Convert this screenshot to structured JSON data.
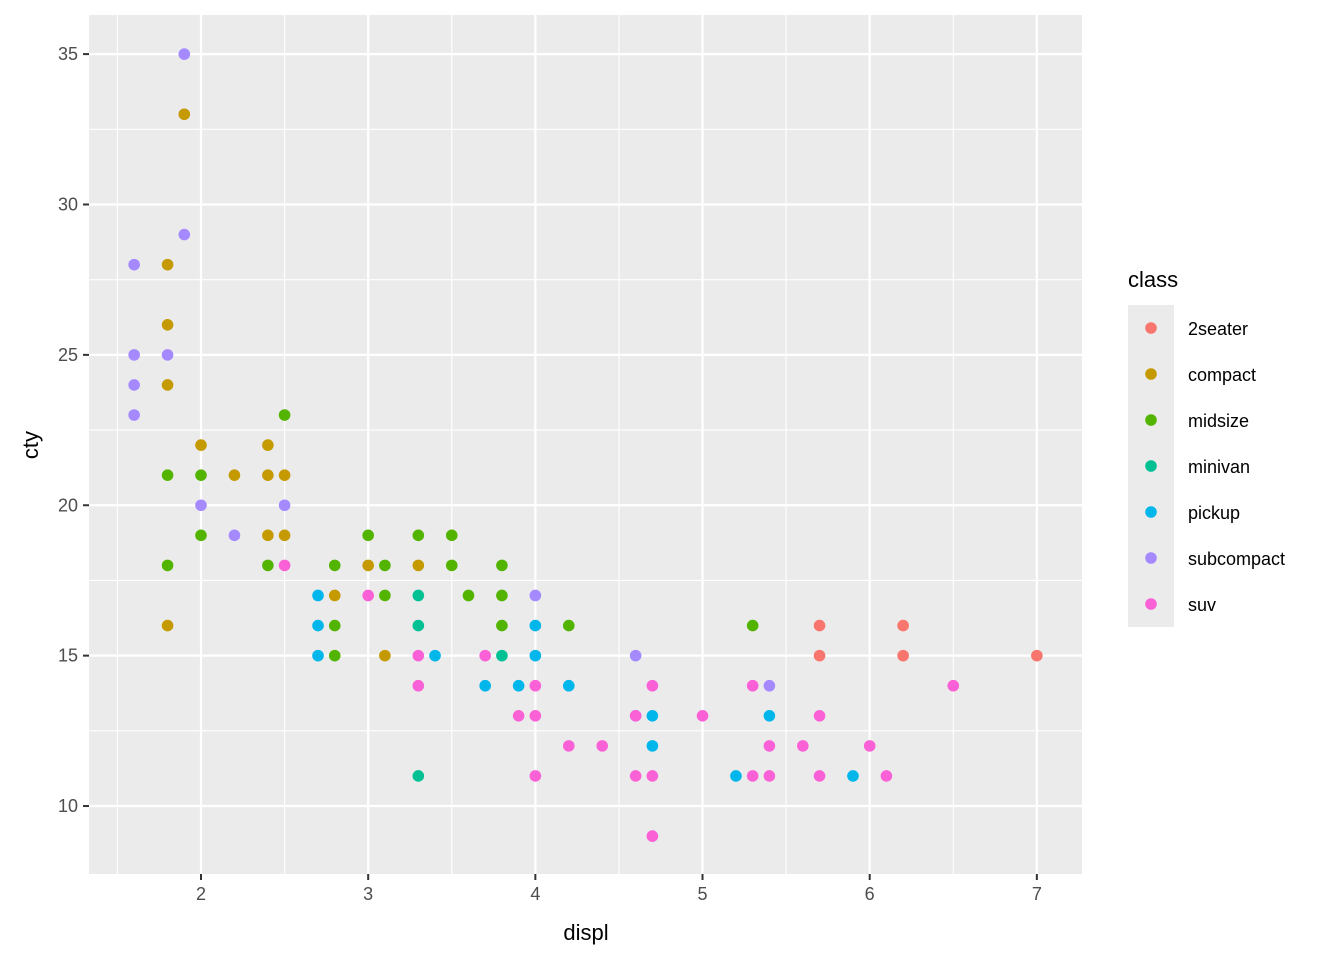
{
  "chart_data": {
    "type": "scatter",
    "xlabel": "displ",
    "ylabel": "cty",
    "xlim": [
      1.33,
      7.27
    ],
    "ylim": [
      7.74,
      36.3
    ],
    "xticks": [
      2,
      3,
      4,
      5,
      6,
      7
    ],
    "yticks": [
      10,
      15,
      20,
      25,
      30,
      35
    ],
    "grid": true,
    "legend": {
      "title": "class",
      "placement": "right"
    },
    "series": [
      {
        "name": "2seater",
        "color": "#F8766D",
        "points": [
          [
            5.7,
            16
          ],
          [
            5.7,
            15
          ],
          [
            6.2,
            16
          ],
          [
            6.2,
            15
          ],
          [
            7.0,
            15
          ]
        ]
      },
      {
        "name": "compact",
        "color": "#C49A00",
        "points": [
          [
            1.9,
            33
          ],
          [
            1.8,
            28
          ],
          [
            1.8,
            26
          ],
          [
            1.8,
            24
          ],
          [
            1.8,
            16
          ],
          [
            2.0,
            22
          ],
          [
            2.2,
            21
          ],
          [
            2.4,
            22
          ],
          [
            2.4,
            21
          ],
          [
            2.4,
            19
          ],
          [
            2.5,
            21
          ],
          [
            2.5,
            19
          ],
          [
            2.8,
            17
          ],
          [
            3.0,
            18
          ],
          [
            3.1,
            15
          ],
          [
            3.3,
            18
          ]
        ]
      },
      {
        "name": "midsize",
        "color": "#53B400",
        "points": [
          [
            1.8,
            21
          ],
          [
            1.8,
            18
          ],
          [
            2.0,
            21
          ],
          [
            2.0,
            19
          ],
          [
            2.4,
            18
          ],
          [
            2.5,
            23
          ],
          [
            2.8,
            18
          ],
          [
            2.8,
            16
          ],
          [
            2.8,
            15
          ],
          [
            3.0,
            19
          ],
          [
            3.1,
            18
          ],
          [
            3.1,
            17
          ],
          [
            3.3,
            19
          ],
          [
            3.5,
            19
          ],
          [
            3.5,
            18
          ],
          [
            3.6,
            17
          ],
          [
            3.8,
            18
          ],
          [
            3.8,
            17
          ],
          [
            3.8,
            16
          ],
          [
            4.2,
            16
          ],
          [
            5.3,
            16
          ]
        ]
      },
      {
        "name": "minivan",
        "color": "#00C094",
        "points": [
          [
            3.3,
            17
          ],
          [
            3.3,
            16
          ],
          [
            3.3,
            11
          ],
          [
            3.8,
            15
          ]
        ]
      },
      {
        "name": "pickup",
        "color": "#00B6EB",
        "points": [
          [
            2.7,
            17
          ],
          [
            2.7,
            16
          ],
          [
            2.7,
            15
          ],
          [
            3.4,
            15
          ],
          [
            3.7,
            14
          ],
          [
            3.9,
            14
          ],
          [
            4.0,
            16
          ],
          [
            4.0,
            15
          ],
          [
            4.2,
            14
          ],
          [
            4.7,
            13
          ],
          [
            4.7,
            12
          ],
          [
            5.2,
            11
          ],
          [
            5.4,
            13
          ],
          [
            5.9,
            11
          ]
        ]
      },
      {
        "name": "subcompact",
        "color": "#A58AFF",
        "points": [
          [
            1.9,
            35
          ],
          [
            1.9,
            29
          ],
          [
            1.6,
            28
          ],
          [
            1.6,
            25
          ],
          [
            1.6,
            24
          ],
          [
            1.6,
            23
          ],
          [
            1.8,
            25
          ],
          [
            2.0,
            20
          ],
          [
            2.2,
            19
          ],
          [
            2.5,
            20
          ],
          [
            4.0,
            17
          ],
          [
            4.6,
            15
          ],
          [
            4.6,
            13
          ],
          [
            5.4,
            14
          ]
        ]
      },
      {
        "name": "suv",
        "color": "#FB61D7",
        "points": [
          [
            2.5,
            18
          ],
          [
            3.0,
            17
          ],
          [
            3.3,
            15
          ],
          [
            3.3,
            14
          ],
          [
            3.7,
            15
          ],
          [
            3.9,
            13
          ],
          [
            4.0,
            14
          ],
          [
            4.0,
            13
          ],
          [
            4.0,
            11
          ],
          [
            4.2,
            12
          ],
          [
            4.4,
            12
          ],
          [
            4.6,
            13
          ],
          [
            4.6,
            11
          ],
          [
            4.7,
            14
          ],
          [
            4.7,
            11
          ],
          [
            4.7,
            9
          ],
          [
            5.0,
            13
          ],
          [
            5.3,
            14
          ],
          [
            5.3,
            11
          ],
          [
            5.4,
            12
          ],
          [
            5.4,
            11
          ],
          [
            5.6,
            12
          ],
          [
            5.7,
            13
          ],
          [
            5.7,
            11
          ],
          [
            6.0,
            12
          ],
          [
            6.1,
            11
          ],
          [
            6.5,
            14
          ]
        ]
      }
    ]
  }
}
